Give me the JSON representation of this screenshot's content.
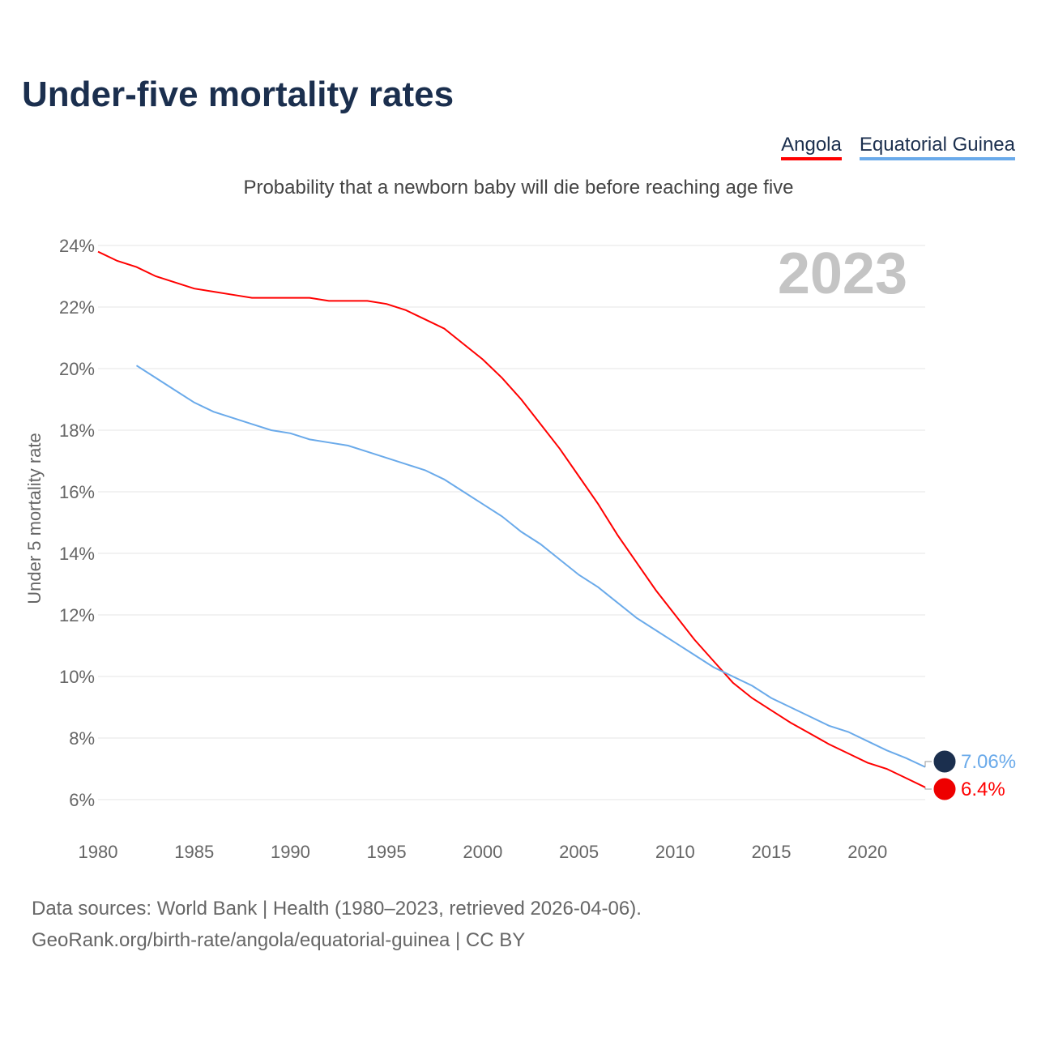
{
  "title": "Under-five mortality rates",
  "subtitle": "Probability that a newborn baby will die before reaching age five",
  "source_line1": "Data sources: World Bank | Health (1980–2023, retrieved 2026-04-06).",
  "source_line2": "GeoRank.org/birth-rate/angola/equatorial-guinea | CC BY",
  "chart_data": {
    "type": "line",
    "title": "Under-five mortality rates",
    "ylabel": "Under 5 mortality rate",
    "xlabel": "",
    "year_label": "2023",
    "ylim": [
      6,
      24
    ],
    "xlim": [
      1980,
      2023
    ],
    "yticks": [
      6,
      8,
      10,
      12,
      14,
      16,
      18,
      20,
      22,
      24
    ],
    "xticks": [
      1980,
      1985,
      1990,
      1995,
      2000,
      2005,
      2010,
      2015,
      2020
    ],
    "legend": "top-right",
    "grid": true,
    "series": [
      {
        "name": "Angola",
        "color": "#ff0000",
        "end_label": "6.4%",
        "start": 1980,
        "values": [
          23.8,
          23.5,
          23.3,
          23.0,
          22.8,
          22.6,
          22.5,
          22.4,
          22.3,
          22.3,
          22.3,
          22.3,
          22.2,
          22.2,
          22.2,
          22.1,
          21.9,
          21.6,
          21.3,
          20.8,
          20.3,
          19.7,
          19.0,
          18.2,
          17.4,
          16.5,
          15.6,
          14.6,
          13.7,
          12.8,
          12.0,
          11.2,
          10.5,
          9.8,
          9.3,
          8.9,
          8.5,
          8.15,
          7.8,
          7.5,
          7.2,
          7.0,
          6.7,
          6.4
        ]
      },
      {
        "name": "Equatorial Guinea",
        "color": "#6aaaea",
        "end_label": "7.06%",
        "start": 1982,
        "values": [
          20.1,
          19.7,
          19.3,
          18.9,
          18.6,
          18.4,
          18.2,
          18.0,
          17.9,
          17.7,
          17.6,
          17.5,
          17.3,
          17.1,
          16.9,
          16.7,
          16.4,
          16.0,
          15.6,
          15.2,
          14.7,
          14.3,
          13.8,
          13.3,
          12.9,
          12.4,
          11.9,
          11.5,
          11.1,
          10.7,
          10.3,
          10.0,
          9.7,
          9.3,
          9.0,
          8.7,
          8.4,
          8.2,
          7.9,
          7.6,
          7.35,
          7.06
        ]
      }
    ]
  }
}
